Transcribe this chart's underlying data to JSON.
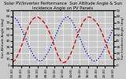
{
  "title": "Solar PV/Inverter Performance  Sun Altitude Angle & Sun Incidence Angle on PV Panels",
  "ylabel_left": "Sun Altitude Angle (deg)",
  "ylabel_right": "Sun Incidence Angle (deg)",
  "x_values": [
    0,
    1,
    2,
    3,
    4,
    5,
    6,
    7,
    8,
    9,
    10,
    11,
    12,
    13,
    14,
    15,
    16,
    17,
    18,
    19,
    20,
    21,
    22,
    23,
    24,
    25,
    26,
    27,
    28,
    29,
    30,
    31,
    32,
    33,
    34,
    35,
    36,
    37,
    38,
    39,
    40,
    41,
    42,
    43,
    44,
    45,
    46,
    47,
    48
  ],
  "blue_values": [
    80,
    78,
    74,
    68,
    61,
    53,
    45,
    37,
    29,
    22,
    16,
    11,
    8,
    7,
    8,
    11,
    16,
    22,
    29,
    37,
    45,
    53,
    61,
    68,
    74,
    78,
    80,
    78,
    74,
    68,
    61,
    53,
    45,
    37,
    29,
    22,
    16,
    11,
    8,
    7,
    8,
    11,
    16,
    22,
    29,
    37,
    45,
    53,
    61
  ],
  "red_values": [
    5,
    8,
    14,
    21,
    30,
    40,
    50,
    59,
    67,
    73,
    77,
    79,
    79,
    77,
    74,
    70,
    65,
    58,
    50,
    41,
    31,
    21,
    13,
    7,
    4,
    5,
    8,
    14,
    21,
    30,
    40,
    50,
    59,
    67,
    73,
    77,
    79,
    79,
    77,
    74,
    70,
    65,
    58,
    50,
    41,
    31,
    21,
    13,
    7
  ],
  "blue_color": "#0000cc",
  "red_color": "#cc0000",
  "bg_color": "#c8c8c8",
  "grid_color": "#ffffff",
  "ylim": [
    0,
    90
  ],
  "xlim": [
    0,
    48
  ],
  "title_fontsize": 3.8,
  "tick_fontsize": 3.0,
  "label_fontsize": 3.0,
  "x_tick_positions": [
    0,
    4,
    8,
    12,
    16,
    20,
    24,
    28,
    32,
    36,
    40,
    44,
    48
  ],
  "x_tick_labels": [
    "00:00",
    "02:00",
    "04:00",
    "06:00",
    "08:00",
    "10:00",
    "12:00",
    "14:00",
    "16:00",
    "18:00",
    "20:00",
    "22:00",
    "24:00"
  ],
  "y_tick_positions": [
    0,
    10,
    20,
    30,
    40,
    50,
    60,
    70,
    80,
    90
  ],
  "y_tick_labels": [
    "0",
    "10",
    "20",
    "30",
    "40",
    "50",
    "60",
    "70",
    "80",
    "90"
  ]
}
